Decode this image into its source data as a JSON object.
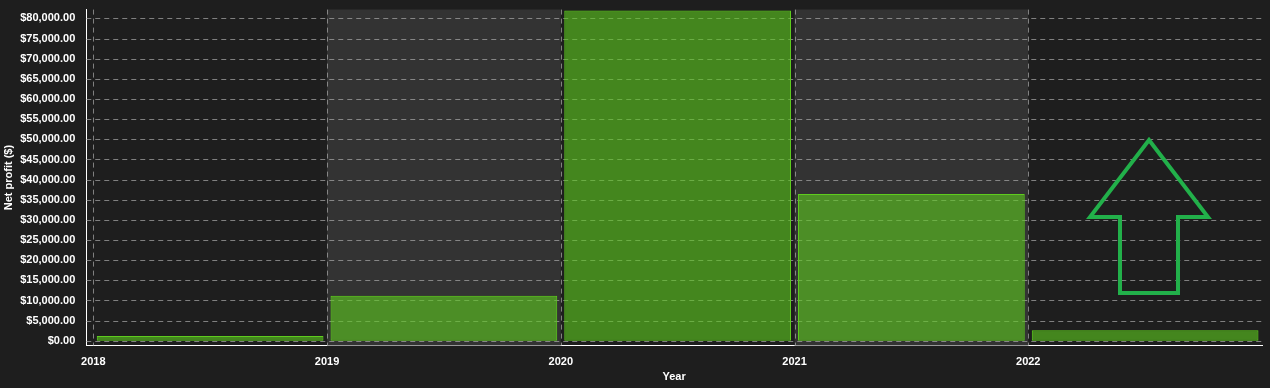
{
  "chart_data": {
    "type": "histogram",
    "xlabel": "Year",
    "ylabel": "Net profit ($)",
    "bins": [
      2018,
      2019,
      2020,
      2021,
      2022,
      2023
    ],
    "values": [
      1200,
      11200,
      82000,
      36400,
      2600
    ],
    "color": "#5ecc1e",
    "xlim": [
      2017.97,
      2023
    ],
    "xticks": [
      2018,
      2019,
      2020,
      2021,
      2022
    ],
    "ylim": [
      -1200,
      82200
    ],
    "yticks": [
      {
        "value": 0,
        "label": "$0.00"
      },
      {
        "value": 5000,
        "label": "$5,000.00"
      },
      {
        "value": 10000,
        "label": "$10,000.00"
      },
      {
        "value": 15000,
        "label": "$15,000.00"
      },
      {
        "value": 20000,
        "label": "$20,000.00"
      },
      {
        "value": 25000,
        "label": "$25,000.00"
      },
      {
        "value": 30000,
        "label": "$30,000.00"
      },
      {
        "value": 35000,
        "label": "$35,000.00"
      },
      {
        "value": 40000,
        "label": "$40,000.00"
      },
      {
        "value": 45000,
        "label": "$45,000.00"
      },
      {
        "value": 50000,
        "label": "$50,000.00"
      },
      {
        "value": 55000,
        "label": "$55,000.00"
      },
      {
        "value": 60000,
        "label": "$60,000.00"
      },
      {
        "value": 65000,
        "label": "$65,000.00"
      },
      {
        "value": 70000,
        "label": "$70,000.00"
      },
      {
        "value": 75000,
        "label": "$75,000.00"
      },
      {
        "value": 80000,
        "label": "$80,000.00"
      }
    ],
    "bands": [
      {
        "axis": "x",
        "from": 2019,
        "to": 2020,
        "color": "#333333"
      },
      {
        "axis": "x",
        "from": 2021,
        "to": 2022,
        "color": "#333333"
      }
    ],
    "grid": true,
    "legend": false
  }
}
